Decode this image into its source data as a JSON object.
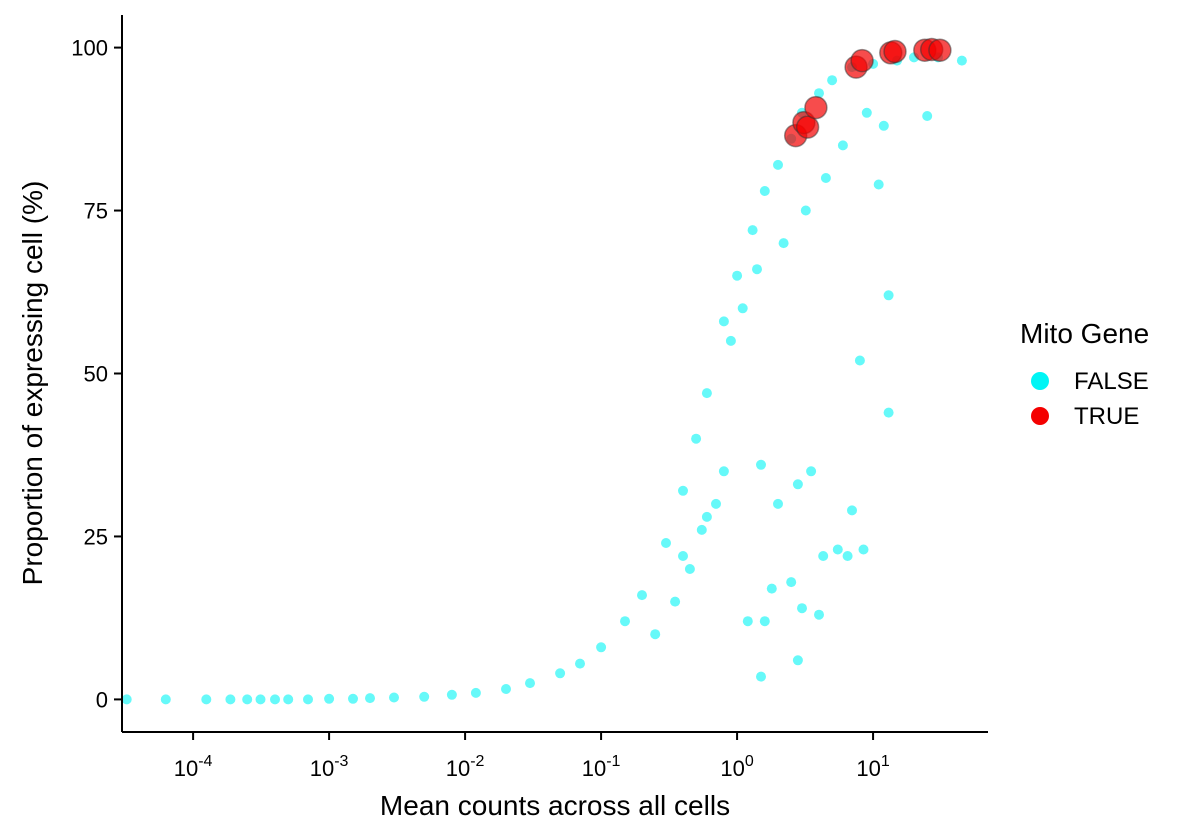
{
  "chart_data": {
    "type": "scatter",
    "title": "",
    "xlabel": "Mean counts across all cells",
    "ylabel": "Proportion of expressing cell (%)",
    "x_scale": "log10",
    "xlim": [
      3e-05,
      70
    ],
    "ylim": [
      -5,
      105
    ],
    "x_ticks": [
      {
        "value": 0.0001,
        "base": "10",
        "exp": "-4"
      },
      {
        "value": 0.001,
        "base": "10",
        "exp": "-3"
      },
      {
        "value": 0.01,
        "base": "10",
        "exp": "-2"
      },
      {
        "value": 0.1,
        "base": "10",
        "exp": "-1"
      },
      {
        "value": 1,
        "base": "10",
        "exp": "0"
      },
      {
        "value": 10,
        "base": "10",
        "exp": "1"
      }
    ],
    "y_ticks": [
      {
        "value": 0,
        "label": "0"
      },
      {
        "value": 25,
        "label": "25"
      },
      {
        "value": 50,
        "label": "50"
      },
      {
        "value": 75,
        "label": "75"
      },
      {
        "value": 100,
        "label": "100"
      }
    ],
    "grid": false,
    "legend": {
      "title": "Mito Gene",
      "position": "right",
      "entries": [
        {
          "label": "FALSE",
          "color": "#00F5F5"
        },
        {
          "label": "TRUE",
          "color": "#F40000"
        }
      ]
    },
    "series": [
      {
        "name": "FALSE",
        "color": "#00F5F5",
        "opacity": 0.6,
        "note_trend": "dense sigmoid band of points rising from 0% near x=1e-3 to ~98% near x=40",
        "points": [
          [
            3.25e-05,
            0
          ],
          [
            6.3e-05,
            0
          ],
          [
            0.000125,
            0
          ],
          [
            0.000188,
            0
          ],
          [
            0.00025,
            0
          ],
          [
            0.000313,
            0
          ],
          [
            0.0004,
            0
          ],
          [
            0.0005,
            0
          ],
          [
            0.0007,
            0
          ],
          [
            0.001,
            0.1
          ],
          [
            0.0015,
            0.1
          ],
          [
            0.002,
            0.2
          ],
          [
            0.003,
            0.3
          ],
          [
            0.005,
            0.4
          ],
          [
            0.008,
            0.7
          ],
          [
            0.012,
            1.0
          ],
          [
            0.02,
            1.6
          ],
          [
            0.03,
            2.5
          ],
          [
            0.05,
            4
          ],
          [
            0.07,
            5.5
          ],
          [
            0.1,
            8
          ],
          [
            0.15,
            12
          ],
          [
            0.2,
            16
          ],
          [
            0.3,
            24
          ],
          [
            0.4,
            32
          ],
          [
            0.5,
            40
          ],
          [
            0.6,
            47
          ],
          [
            0.8,
            58
          ],
          [
            1.0,
            65
          ],
          [
            1.3,
            72
          ],
          [
            1.6,
            78
          ],
          [
            2.0,
            82
          ],
          [
            2.5,
            86
          ],
          [
            3.0,
            90
          ],
          [
            4.0,
            93
          ],
          [
            5.0,
            95
          ],
          [
            7.0,
            97
          ],
          [
            10,
            97.5
          ],
          [
            15,
            98
          ],
          [
            20,
            98.5
          ],
          [
            30,
            98.5
          ],
          [
            45,
            98
          ],
          [
            0.4,
            22
          ],
          [
            0.6,
            28
          ],
          [
            0.8,
            35
          ],
          [
            1.5,
            36
          ],
          [
            2.0,
            30
          ],
          [
            2.8,
            33
          ],
          [
            3.5,
            35
          ],
          [
            4.3,
            22
          ],
          [
            5.5,
            23
          ],
          [
            6.5,
            22
          ],
          [
            7.0,
            29
          ],
          [
            8.5,
            23
          ],
          [
            1.8,
            17
          ],
          [
            2.5,
            18
          ],
          [
            3.0,
            14
          ],
          [
            4.0,
            13
          ],
          [
            1.2,
            12
          ],
          [
            1.6,
            12
          ],
          [
            2.8,
            6
          ],
          [
            1.5,
            3.5
          ],
          [
            13,
            44
          ],
          [
            13,
            62
          ],
          [
            8,
            52
          ],
          [
            11,
            79
          ],
          [
            25,
            89.5
          ],
          [
            0.9,
            55
          ],
          [
            1.1,
            60
          ],
          [
            1.4,
            66
          ],
          [
            2.2,
            70
          ],
          [
            3.2,
            75
          ],
          [
            4.5,
            80
          ],
          [
            6,
            85
          ],
          [
            9,
            90
          ],
          [
            12,
            88
          ],
          [
            0.25,
            10
          ],
          [
            0.35,
            15
          ],
          [
            0.45,
            20
          ],
          [
            0.7,
            30
          ],
          [
            0.55,
            26
          ]
        ]
      },
      {
        "name": "TRUE",
        "color": "#F40000",
        "opacity": 0.7,
        "points": [
          [
            2.7,
            86.5
          ],
          [
            3.1,
            88.5
          ],
          [
            3.3,
            87.8
          ],
          [
            3.8,
            90.8
          ],
          [
            7.5,
            97
          ],
          [
            8.3,
            98
          ],
          [
            13.5,
            99.2
          ],
          [
            14.5,
            99.4
          ],
          [
            24,
            99.6
          ],
          [
            27,
            99.7
          ],
          [
            31,
            99.6
          ]
        ]
      }
    ]
  }
}
